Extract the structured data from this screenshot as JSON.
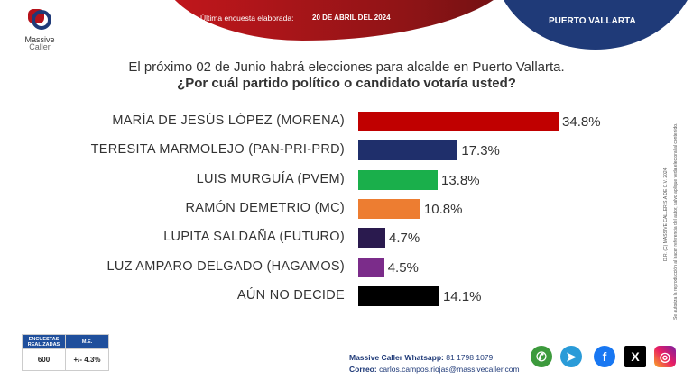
{
  "header": {
    "brand": "Massive Caller",
    "brand_line1": "Massive",
    "brand_line2": "Caller",
    "survey_label": "Última encuesta elaborada:",
    "survey_date": "20 DE ABRIL DEL 2024",
    "location": "PUERTO VALLARTA"
  },
  "question": {
    "line1": "El próximo 02 de Junio habrá elecciones para alcalde en Puerto Vallarta.",
    "line2": "¿Por cuál partido político o candidato votaría usted?"
  },
  "chart_data": {
    "type": "bar",
    "orientation": "horizontal",
    "categories": [
      "MARÍA DE JESÚS LÓPEZ (MORENA)",
      "TERESITA MARMOLEJO (PAN-PRI-PRD)",
      "LUIS MURGUÍA (PVEM)",
      "RAMÓN DEMETRIO (MC)",
      "LUPITA SALDAÑA (FUTURO)",
      "LUZ AMPARO DELGADO (HAGAMOS)",
      "AÚN NO DECIDE"
    ],
    "values": [
      34.8,
      17.3,
      13.8,
      10.8,
      4.7,
      4.5,
      14.1
    ],
    "labels": [
      "34.8%",
      "17.3%",
      "13.8%",
      "10.8%",
      "4.7%",
      "4.5%",
      "14.1%"
    ],
    "colors": [
      "#c00000",
      "#1f2f6b",
      "#1aaf4b",
      "#ed7d31",
      "#2a1a4e",
      "#7b2c8a",
      "#000000"
    ]
  },
  "stats": {
    "surveys_header": "ENCUESTAS REALIZADAS",
    "me_header": "M.E.",
    "surveys": "600",
    "me": "+/- 4.3%"
  },
  "contact": {
    "whatsapp_label": "Massive Caller Whatsapp:",
    "whatsapp": "81 1798 1079",
    "email_label": "Correo:",
    "email": "carlos.campos.riojas@massivecaller.com"
  },
  "social": [
    "whatsapp-icon",
    "telegram-icon",
    "facebook-icon",
    "x-icon",
    "instagram-icon"
  ],
  "legal": {
    "line1": "D.R. (C) MASSIVE CALLER S.A DE C.V. 2024",
    "line2": "Se autoriza la reproducción al hacer referencia del autor, salvo aplique veda electoral al contenido."
  }
}
